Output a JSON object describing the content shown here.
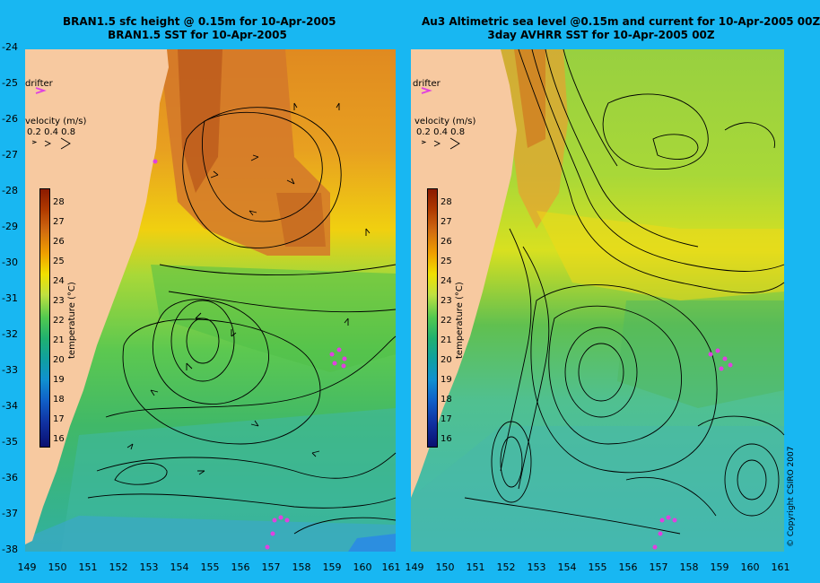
{
  "left_panel": {
    "title_line1": "BRAN1.5 sfc height @ 0.15m for 10-Apr-2005",
    "title_line2": "BRAN1.5 SST for 10-Apr-2005"
  },
  "right_panel": {
    "title_line1": "Au3 Altimetric sea level  @0.15m and current for 10-Apr-2005 00Z",
    "title_line2": "3day AVHRR SST for 10-Apr-2005 00Z"
  },
  "legend": {
    "drifter_label": "drifter",
    "velocity_label": "velocity (m/s)",
    "velocity_values": "0.2 0.4 0.8"
  },
  "colorbar": {
    "label": "temperature (°C)",
    "ticks": [
      "28",
      "27",
      "26",
      "25",
      "24",
      "23",
      "22",
      "21",
      "20",
      "19",
      "18",
      "17",
      "16"
    ]
  },
  "axes": {
    "y_ticks": [
      "-24",
      "-25",
      "-26",
      "-27",
      "-28",
      "-29",
      "-30",
      "-31",
      "-32",
      "-33",
      "-34",
      "-35",
      "-36",
      "-37",
      "-38"
    ],
    "x_ticks": [
      "149",
      "150",
      "151",
      "152",
      "153",
      "154",
      "155",
      "156",
      "157",
      "158",
      "159",
      "160",
      "161"
    ]
  },
  "copyright": "© Copyright CSIRO 2007",
  "colors": {
    "background": "#18b7f2",
    "land": "#f7c9a0",
    "drifter": "#e040e0"
  }
}
